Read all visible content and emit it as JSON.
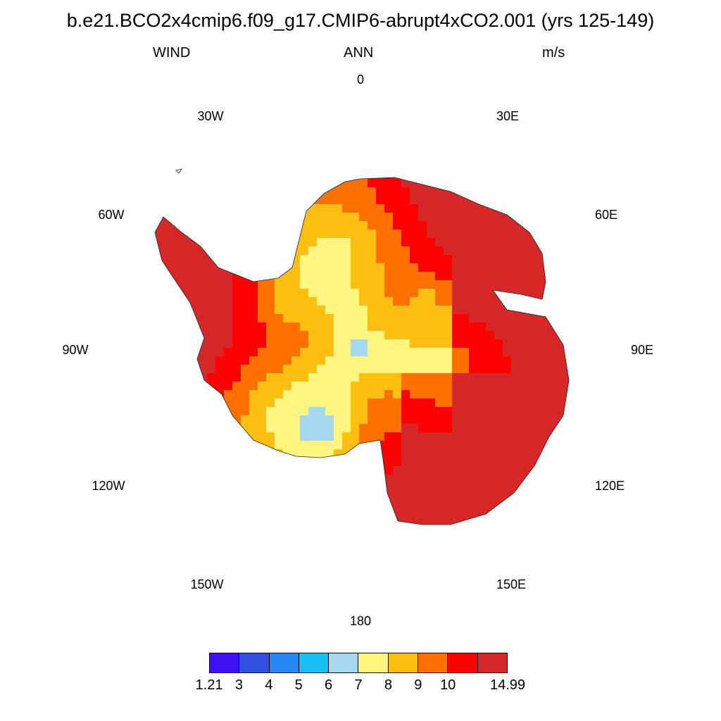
{
  "title": "b.e21.BCO2x4cmip6.f09_g17.CMIP6-abrupt4xCO2.001 (yrs 125-149)",
  "left_string": "WIND",
  "center_string": "ANN",
  "right_string": "m/s",
  "projection": "south-polar-stereographic",
  "longitude_labels": {
    "deg0": "0",
    "e30": "30E",
    "e60": "60E",
    "e90": "90E",
    "e120": "120E",
    "e150": "150E",
    "deg180": "180",
    "w150": "150W",
    "w120": "120W",
    "w90": "90W",
    "w60": "60W",
    "w30": "30W"
  },
  "colorbar": {
    "colors": [
      "#4010f5",
      "#3050e0",
      "#2688f5",
      "#18c0f5",
      "#a6d8f0",
      "#fff57f",
      "#ffbf10",
      "#ff7000",
      "#ff0000",
      "#d62828"
    ],
    "labels": [
      "1.21",
      "3",
      "4",
      "5",
      "6",
      "7",
      "8",
      "9",
      "10",
      "14.99"
    ]
  },
  "field_description": {
    "units": "m/s",
    "plateau_minimum_color": "#fff57f",
    "coast_maximum_color": "#d62828"
  }
}
